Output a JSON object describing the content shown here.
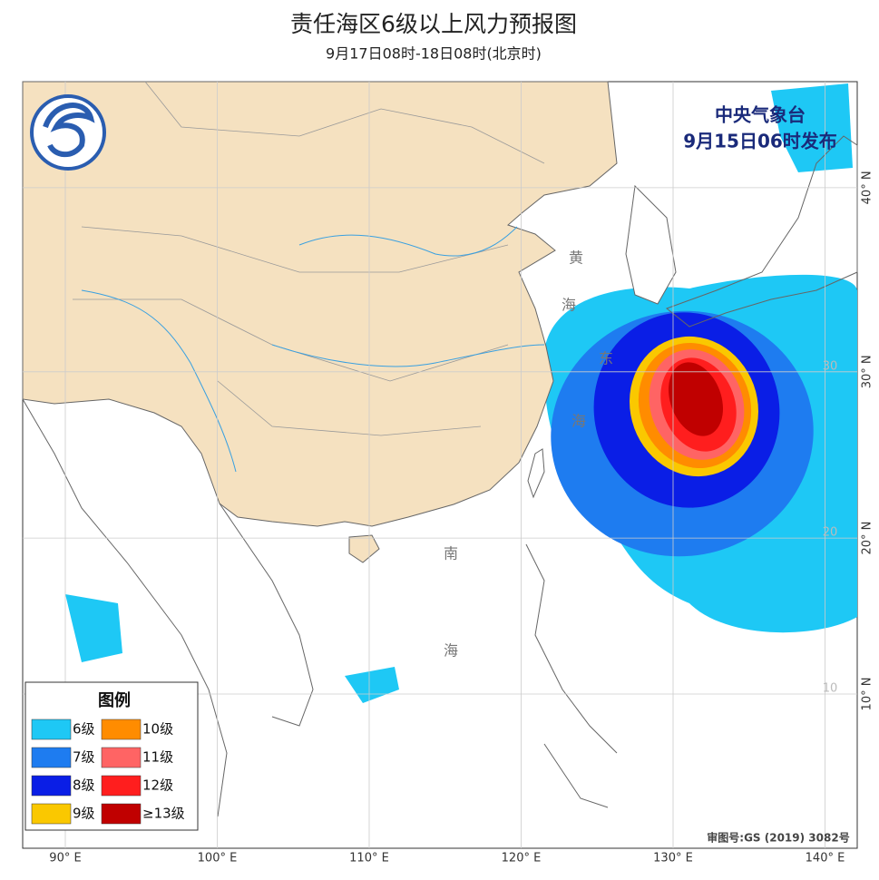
{
  "header": {
    "title": "责任海区6级以上风力预报图",
    "subtitle": "9月17日08时-18日08时(北京时)"
  },
  "issuer": {
    "org": "中央气象台",
    "time": "9月15日06时发布"
  },
  "legend": {
    "title": "图例",
    "items": [
      {
        "label": "6级",
        "color": "#1ec8f5"
      },
      {
        "label": "7级",
        "color": "#1e7cf0"
      },
      {
        "label": "8级",
        "color": "#0a1ee6"
      },
      {
        "label": "9级",
        "color": "#fac800"
      },
      {
        "label": "10级",
        "color": "#ff8c00"
      },
      {
        "label": "11级",
        "color": "#ff6464"
      },
      {
        "label": "12级",
        "color": "#ff1e1e"
      },
      {
        "label": "≥13级",
        "color": "#c00000"
      }
    ]
  },
  "sea_labels": [
    "黄",
    "海",
    "东",
    "海",
    "南",
    "海"
  ],
  "lon_ticks": [
    {
      "value": 90,
      "label": "90° E"
    },
    {
      "value": 100,
      "label": "100° E"
    },
    {
      "value": 110,
      "label": "110° E"
    },
    {
      "value": 120,
      "label": "120° E"
    },
    {
      "value": 130,
      "label": "130° E"
    },
    {
      "value": 140,
      "label": "140° E"
    }
  ],
  "lat_ticks": [
    {
      "value": 40,
      "label": "40° N"
    },
    {
      "value": 30,
      "label": "30° N"
    },
    {
      "value": 20,
      "label": "20° N"
    },
    {
      "value": 10,
      "label": "10° N"
    }
  ],
  "lat_grid_labels": [
    30,
    20,
    10
  ],
  "approval": "审图号:GS (2019) 3082号"
}
